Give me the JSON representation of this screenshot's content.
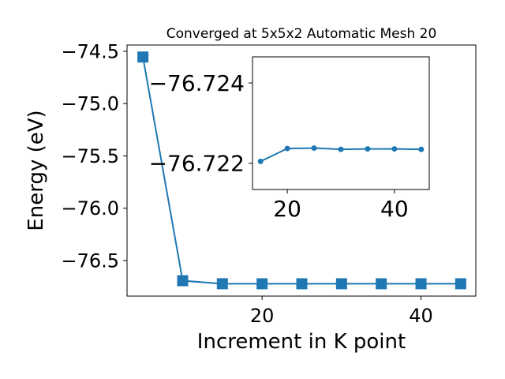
{
  "chart_data": [
    {
      "type": "line",
      "title": "Converged at 5x5x2 Automatic Mesh 20",
      "xlabel": "Increment in K point",
      "ylabel": "Energy (eV)",
      "x": [
        5,
        10,
        15,
        20,
        25,
        30,
        35,
        40,
        45
      ],
      "series": [
        {
          "values": [
            -74.555,
            -76.693,
            -76.722,
            -76.7223,
            -76.7223,
            -76.7223,
            -76.7223,
            -76.7223,
            -76.7223
          ]
        }
      ],
      "marker": "square",
      "color": "#1f77b4",
      "xlim": [
        3.0,
        46.9
      ],
      "ylim": [
        -76.84,
        -74.44
      ],
      "xticks": [
        20,
        40
      ],
      "xtick_labels": [
        "20",
        "40"
      ],
      "yticks": [
        -74.5,
        -75.0,
        -75.5,
        -76.0,
        -76.5
      ],
      "ytick_labels": [
        "−74.5",
        "−75.0",
        "−75.5",
        "−76.0",
        "−76.5"
      ],
      "grid": false,
      "legend": "none"
    },
    {
      "type": "line",
      "title": "",
      "xlabel": "",
      "ylabel": "",
      "x": [
        15,
        20,
        25,
        30,
        35,
        40,
        45
      ],
      "series": [
        {
          "values": [
            -76.72205,
            -76.72237,
            -76.72238,
            -76.72235,
            -76.72236,
            -76.72236,
            -76.72235
          ]
        }
      ],
      "marker": "circle",
      "color": "#1f77b4",
      "xlim": [
        13.5,
        46.5
      ],
      "ylim": [
        -76.72135,
        -76.72465
      ],
      "xticks": [
        20,
        40
      ],
      "xtick_labels": [
        "20",
        "40"
      ],
      "yticks": [
        -76.724,
        -76.722
      ],
      "ytick_labels": [
        "−76.724",
        "−76.722"
      ],
      "grid": false,
      "legend": "none"
    }
  ]
}
